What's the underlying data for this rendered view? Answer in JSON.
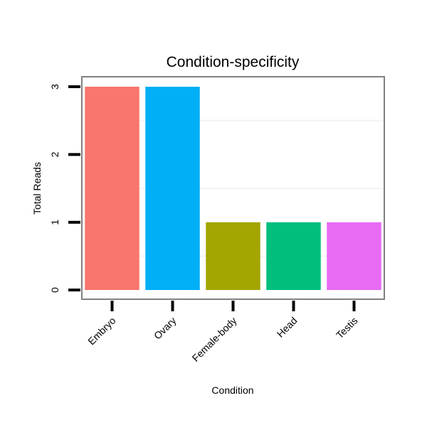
{
  "chart_data": {
    "type": "bar",
    "title": "Condition-specificity",
    "xlabel": "Condition",
    "ylabel": "Total Reads",
    "categories": [
      "Embryo",
      "Ovary",
      "Female-body",
      "Head",
      "Testis"
    ],
    "values": [
      3,
      3,
      1,
      1,
      1
    ],
    "colors": [
      "#F8766D",
      "#00B0F6",
      "#A3A500",
      "#00BF7D",
      "#E76BF3"
    ],
    "ylim": [
      -0.136,
      3.147
    ],
    "yticks": [
      0,
      1,
      2,
      3
    ],
    "ytick_labels": [
      "0",
      "1",
      "2",
      "3"
    ],
    "grid": true,
    "legend": "none"
  }
}
